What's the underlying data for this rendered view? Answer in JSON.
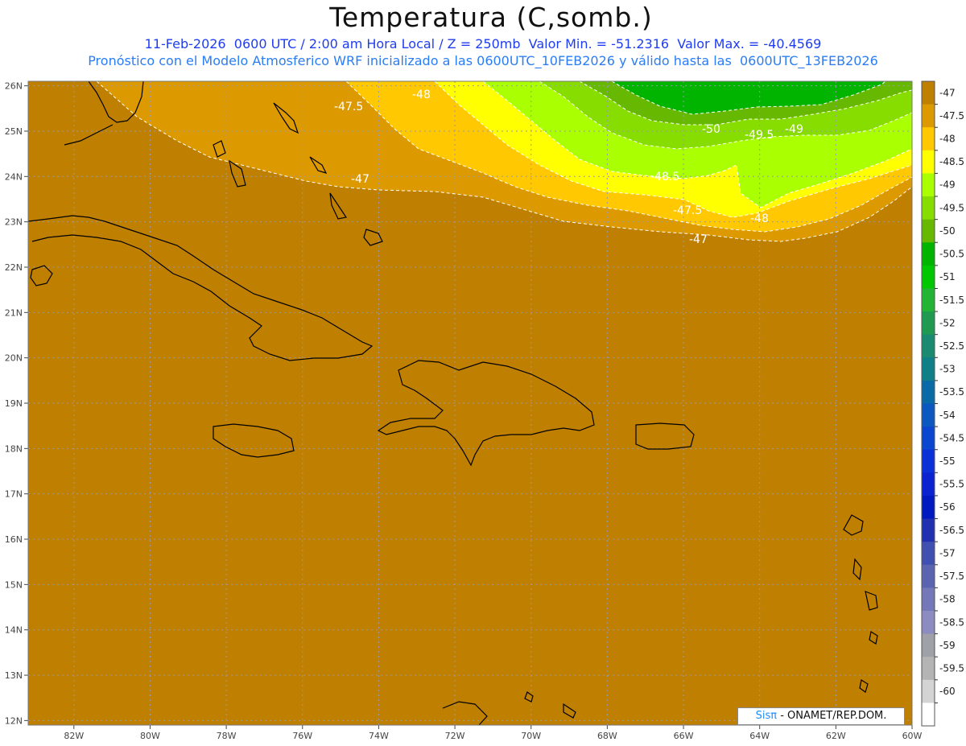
{
  "title": "Temperatura (C,somb.)",
  "subtitle_line1": "11-Feb-2026  0600 UTC / 2:00 am Hora Local / Z = 250mb  Valor Min. = -51.2316  Valor Max. = -40.4569",
  "subtitle_line2": "Pronóstico con el Modelo Atmosferico WRF inicializado a las 0600UTC_10FEB2026 y válido hasta las  0600UTC_13FEB2026",
  "credit": {
    "brand": "Sisπ",
    "text": " - ONAMET/REP.DOM."
  },
  "map": {
    "lon_range": [
      -83.2,
      -60
    ],
    "lat_range": [
      11.9,
      26.1
    ],
    "lon_ticks": [
      "82W",
      "80W",
      "78W",
      "76W",
      "74W",
      "72W",
      "70W",
      "68W",
      "66W",
      "64W",
      "62W",
      "60W"
    ],
    "lat_ticks": [
      "12N",
      "13N",
      "14N",
      "15N",
      "16N",
      "17N",
      "18N",
      "19N",
      "20N",
      "21N",
      "22N",
      "23N",
      "24N",
      "25N",
      "26N"
    ],
    "grid": true
  },
  "colorbar": {
    "labels": [
      "-47",
      "-47.5",
      "-48",
      "-48.5",
      "-49",
      "-49.5",
      "-50",
      "-50.5",
      "-51",
      "-51.5",
      "-52",
      "-52.5",
      "-53",
      "-53.5",
      "-54",
      "-54.5",
      "-55",
      "-55.5",
      "-56",
      "-56.5",
      "-57",
      "-57.5",
      "-58",
      "-58.5",
      "-59",
      "-59.5",
      "-60"
    ],
    "colors": [
      "#bf7f00",
      "#dc9a00",
      "#ffc800",
      "#ffff00",
      "#aaff00",
      "#88dd00",
      "#66b800",
      "#00b400",
      "#00c800",
      "#22b434",
      "#1f9a50",
      "#1a8a70",
      "#108088",
      "#0a6aa8",
      "#0a58c0",
      "#0a46d0",
      "#0a30d8",
      "#0a22d0",
      "#0018c0",
      "#2030b0",
      "#4050b0",
      "#5a64b0",
      "#7478b8",
      "#8c8cc0",
      "#a0a0a8",
      "#b4b4b4",
      "#d4d4d4",
      "#ffffff"
    ]
  },
  "contour_labels": [
    "-47.5",
    "-48",
    "-47",
    "-50",
    "-49.5",
    "-49",
    "-48.5",
    "-47.5",
    "-48",
    "-47"
  ],
  "fill_colors": {
    "c_-47": "#bf7f00",
    "c_-47.5": "#dc9a00",
    "c_-48": "#ffc800",
    "c_-48.5": "#ffff00",
    "c_-49": "#aaff00",
    "c_-49.5": "#88dd00",
    "c_-50": "#66b800",
    "c_-50.5": "#00b400"
  }
}
